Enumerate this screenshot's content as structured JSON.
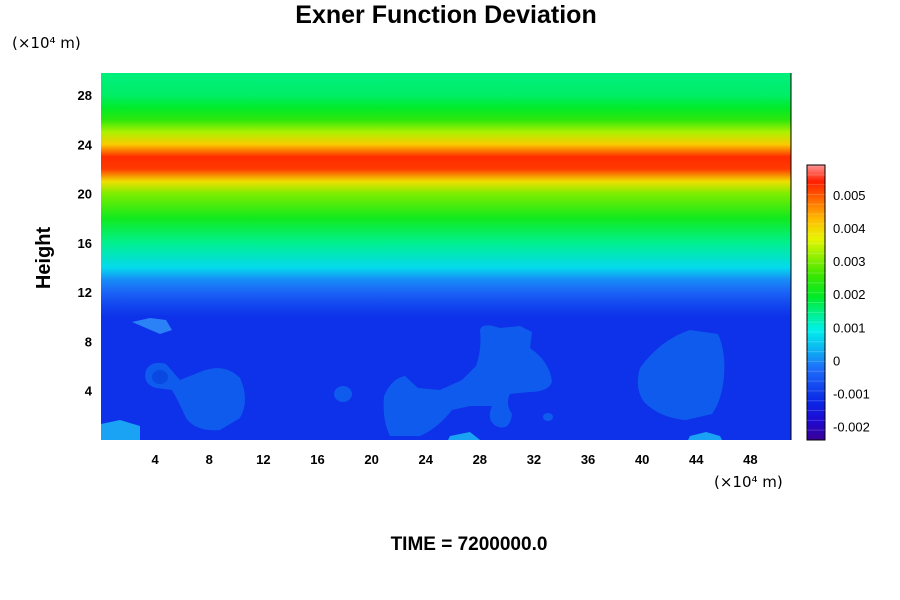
{
  "chart_data": {
    "type": "heatmap",
    "title": "Exner Function Deviation",
    "ylabel": "Height",
    "xlabel": "",
    "x_unit": "(×10⁴ m)",
    "y_unit": "(×10⁴ m)",
    "xlim": [
      0,
      51
    ],
    "ylim": [
      0,
      29.8
    ],
    "x_ticks": [
      "4",
      "8",
      "12",
      "16",
      "20",
      "24",
      "28",
      "32",
      "36",
      "40",
      "44",
      "48"
    ],
    "x_tick_values": [
      4,
      8,
      12,
      16,
      20,
      24,
      28,
      32,
      36,
      40,
      44,
      48
    ],
    "y_ticks": [
      "4",
      "8",
      "12",
      "16",
      "20",
      "24",
      "28"
    ],
    "y_tick_values": [
      4,
      8,
      12,
      16,
      20,
      24,
      28
    ],
    "colorbar": {
      "range": [
        -0.0024,
        0.0059
      ],
      "ticks": [
        "0.005",
        "0.004",
        "0.003",
        "0.002",
        "0.001",
        "0",
        "-0.001",
        "-0.002"
      ],
      "tick_values": [
        0.005,
        0.004,
        0.003,
        0.002,
        0.001,
        0,
        -0.001,
        -0.002
      ]
    },
    "vertical_profile": {
      "height": [
        0,
        10,
        11,
        12,
        13,
        14,
        16,
        18,
        20,
        21,
        22,
        23,
        24,
        25,
        26,
        27,
        28,
        29.8
      ],
      "value": [
        -0.0011,
        -0.0011,
        -0.0008,
        -0.0004,
        0.0,
        0.0007,
        0.0014,
        0.0021,
        0.003,
        0.0039,
        0.0052,
        0.0053,
        0.0041,
        0.0033,
        0.0024,
        0.0019,
        0.0016,
        0.0015
      ]
    }
  },
  "footer": {
    "label": "TIME = 7200000.0"
  }
}
